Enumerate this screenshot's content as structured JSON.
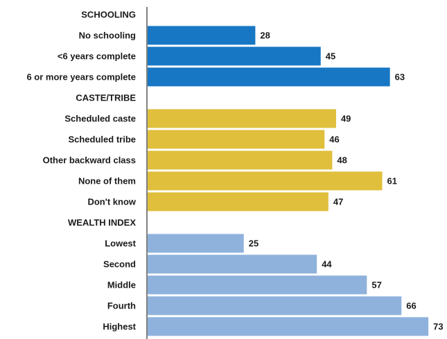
{
  "chart_data": {
    "type": "bar",
    "orientation": "horizontal",
    "title": "",
    "xlabel": "",
    "ylabel": "",
    "grid": false,
    "legend": "none",
    "xlim": [
      0,
      80
    ],
    "groups": [
      {
        "label": "SCHOOLING",
        "color": "#1777c4",
        "items": [
          {
            "label": "No schooling",
            "value": 28
          },
          {
            "label": "<6 years complete",
            "value": 45
          },
          {
            "label": "6 or more years complete",
            "value": 63
          }
        ]
      },
      {
        "label": "CASTE/TRIBE",
        "color": "#dfbf3c",
        "items": [
          {
            "label": "Scheduled caste",
            "value": 49
          },
          {
            "label": "Scheduled tribe",
            "value": 46
          },
          {
            "label": "Other backward class",
            "value": 48
          },
          {
            "label": "None of them",
            "value": 61
          },
          {
            "label": "Don't know",
            "value": 47
          }
        ]
      },
      {
        "label": "WEALTH INDEX",
        "color": "#8fb2dd",
        "items": [
          {
            "label": "Lowest",
            "value": 25
          },
          {
            "label": "Second",
            "value": 44
          },
          {
            "label": "Middle",
            "value": 57
          },
          {
            "label": "Fourth",
            "value": 66
          },
          {
            "label": "Highest",
            "value": 73
          }
        ]
      }
    ]
  }
}
